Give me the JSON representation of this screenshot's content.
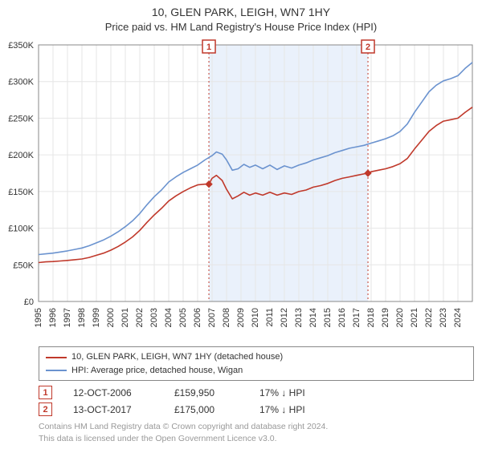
{
  "title_main": "10, GLEN PARK, LEIGH, WN7 1HY",
  "title_sub": "Price paid vs. HM Land Registry's House Price Index (HPI)",
  "chart": {
    "type": "line",
    "x_start_year": 1995,
    "x_end_year": 2025,
    "x_ticks": [
      1995,
      1996,
      1997,
      1998,
      1999,
      2000,
      2001,
      2002,
      2003,
      2004,
      2005,
      2006,
      2007,
      2008,
      2009,
      2010,
      2011,
      2012,
      2013,
      2014,
      2015,
      2016,
      2017,
      2018,
      2019,
      2020,
      2021,
      2022,
      2023,
      2024
    ],
    "ylim": [
      0,
      350000
    ],
    "ytick_step": 50000,
    "y_ticks": [
      "£0",
      "£50K",
      "£100K",
      "£150K",
      "£200K",
      "£250K",
      "£300K",
      "£350K"
    ],
    "background_color": "#ffffff",
    "grid_color": "#e6e6e6",
    "shade": {
      "from_year": 2006.78,
      "to_year": 2017.78,
      "fill": "#eaf1fb"
    },
    "markers": [
      {
        "n": "1",
        "year": 2006.78,
        "date": "12-OCT-2006",
        "price": "£159,950",
        "delta": "17% ↓ HPI",
        "point_y": 160000
      },
      {
        "n": "2",
        "year": 2017.78,
        "date": "13-OCT-2017",
        "price": "£175,000",
        "delta": "17% ↓ HPI",
        "point_y": 175000
      }
    ],
    "series_line_width": 1.6,
    "series": [
      {
        "name": "10, GLEN PARK, LEIGH, WN7 1HY (detached house)",
        "color": "#c0392b",
        "points": [
          [
            1995,
            53000
          ],
          [
            1995.5,
            54000
          ],
          [
            1996,
            54500
          ],
          [
            1996.5,
            55200
          ],
          [
            1997,
            56000
          ],
          [
            1997.5,
            57000
          ],
          [
            1998,
            58000
          ],
          [
            1998.5,
            60000
          ],
          [
            1999,
            63000
          ],
          [
            1999.5,
            66000
          ],
          [
            2000,
            70000
          ],
          [
            2000.5,
            75000
          ],
          [
            2001,
            81000
          ],
          [
            2001.5,
            88000
          ],
          [
            2002,
            97000
          ],
          [
            2002.5,
            108000
          ],
          [
            2003,
            118000
          ],
          [
            2003.5,
            127000
          ],
          [
            2004,
            137000
          ],
          [
            2004.5,
            144000
          ],
          [
            2005,
            150000
          ],
          [
            2005.5,
            155000
          ],
          [
            2006,
            159000
          ],
          [
            2006.5,
            160000
          ],
          [
            2006.78,
            160000
          ],
          [
            2007,
            168000
          ],
          [
            2007.3,
            172000
          ],
          [
            2007.7,
            165000
          ],
          [
            2008,
            153000
          ],
          [
            2008.4,
            140000
          ],
          [
            2008.8,
            144000
          ],
          [
            2009.2,
            149000
          ],
          [
            2009.6,
            145000
          ],
          [
            2010,
            148000
          ],
          [
            2010.5,
            145000
          ],
          [
            2011,
            149000
          ],
          [
            2011.5,
            145000
          ],
          [
            2012,
            148000
          ],
          [
            2012.5,
            146000
          ],
          [
            2013,
            150000
          ],
          [
            2013.5,
            152000
          ],
          [
            2014,
            156000
          ],
          [
            2014.5,
            158000
          ],
          [
            2015,
            161000
          ],
          [
            2015.5,
            165000
          ],
          [
            2016,
            168000
          ],
          [
            2016.5,
            170000
          ],
          [
            2017,
            172000
          ],
          [
            2017.5,
            174000
          ],
          [
            2017.78,
            175000
          ],
          [
            2018,
            177000
          ],
          [
            2018.5,
            179000
          ],
          [
            2019,
            181000
          ],
          [
            2019.5,
            184000
          ],
          [
            2020,
            188000
          ],
          [
            2020.5,
            195000
          ],
          [
            2021,
            208000
          ],
          [
            2021.5,
            220000
          ],
          [
            2022,
            232000
          ],
          [
            2022.5,
            240000
          ],
          [
            2023,
            246000
          ],
          [
            2023.5,
            248000
          ],
          [
            2024,
            250000
          ],
          [
            2024.5,
            258000
          ],
          [
            2025,
            265000
          ]
        ]
      },
      {
        "name": "HPI: Average price, detached house, Wigan",
        "color": "#6b93cf",
        "points": [
          [
            1995,
            64000
          ],
          [
            1995.5,
            65000
          ],
          [
            1996,
            66000
          ],
          [
            1996.5,
            67500
          ],
          [
            1997,
            69000
          ],
          [
            1997.5,
            71000
          ],
          [
            1998,
            73000
          ],
          [
            1998.5,
            76000
          ],
          [
            1999,
            80000
          ],
          [
            1999.5,
            84000
          ],
          [
            2000,
            89000
          ],
          [
            2000.5,
            95000
          ],
          [
            2001,
            102000
          ],
          [
            2001.5,
            110000
          ],
          [
            2002,
            120000
          ],
          [
            2002.5,
            132000
          ],
          [
            2003,
            143000
          ],
          [
            2003.5,
            152000
          ],
          [
            2004,
            163000
          ],
          [
            2004.5,
            170000
          ],
          [
            2005,
            176000
          ],
          [
            2005.5,
            181000
          ],
          [
            2006,
            186000
          ],
          [
            2006.5,
            193000
          ],
          [
            2007,
            199000
          ],
          [
            2007.3,
            204000
          ],
          [
            2007.7,
            201000
          ],
          [
            2008,
            193000
          ],
          [
            2008.4,
            179000
          ],
          [
            2008.8,
            181000
          ],
          [
            2009.2,
            187000
          ],
          [
            2009.6,
            183000
          ],
          [
            2010,
            186000
          ],
          [
            2010.5,
            181000
          ],
          [
            2011,
            186000
          ],
          [
            2011.5,
            180000
          ],
          [
            2012,
            185000
          ],
          [
            2012.5,
            182000
          ],
          [
            2013,
            186000
          ],
          [
            2013.5,
            189000
          ],
          [
            2014,
            193000
          ],
          [
            2014.5,
            196000
          ],
          [
            2015,
            199000
          ],
          [
            2015.5,
            203000
          ],
          [
            2016,
            206000
          ],
          [
            2016.5,
            209000
          ],
          [
            2017,
            211000
          ],
          [
            2017.5,
            213000
          ],
          [
            2018,
            216000
          ],
          [
            2018.5,
            219000
          ],
          [
            2019,
            222000
          ],
          [
            2019.5,
            226000
          ],
          [
            2020,
            232000
          ],
          [
            2020.5,
            242000
          ],
          [
            2021,
            258000
          ],
          [
            2021.5,
            272000
          ],
          [
            2022,
            286000
          ],
          [
            2022.5,
            295000
          ],
          [
            2023,
            301000
          ],
          [
            2023.5,
            304000
          ],
          [
            2024,
            308000
          ],
          [
            2024.5,
            318000
          ],
          [
            2025,
            326000
          ]
        ]
      }
    ]
  },
  "legend": [
    {
      "color": "#c0392b",
      "label": "10, GLEN PARK, LEIGH, WN7 1HY (detached house)"
    },
    {
      "color": "#6b93cf",
      "label": "HPI: Average price, detached house, Wigan"
    }
  ],
  "footer1": "Contains HM Land Registry data © Crown copyright and database right 2024.",
  "footer2": "This data is licensed under the Open Government Licence v3.0."
}
